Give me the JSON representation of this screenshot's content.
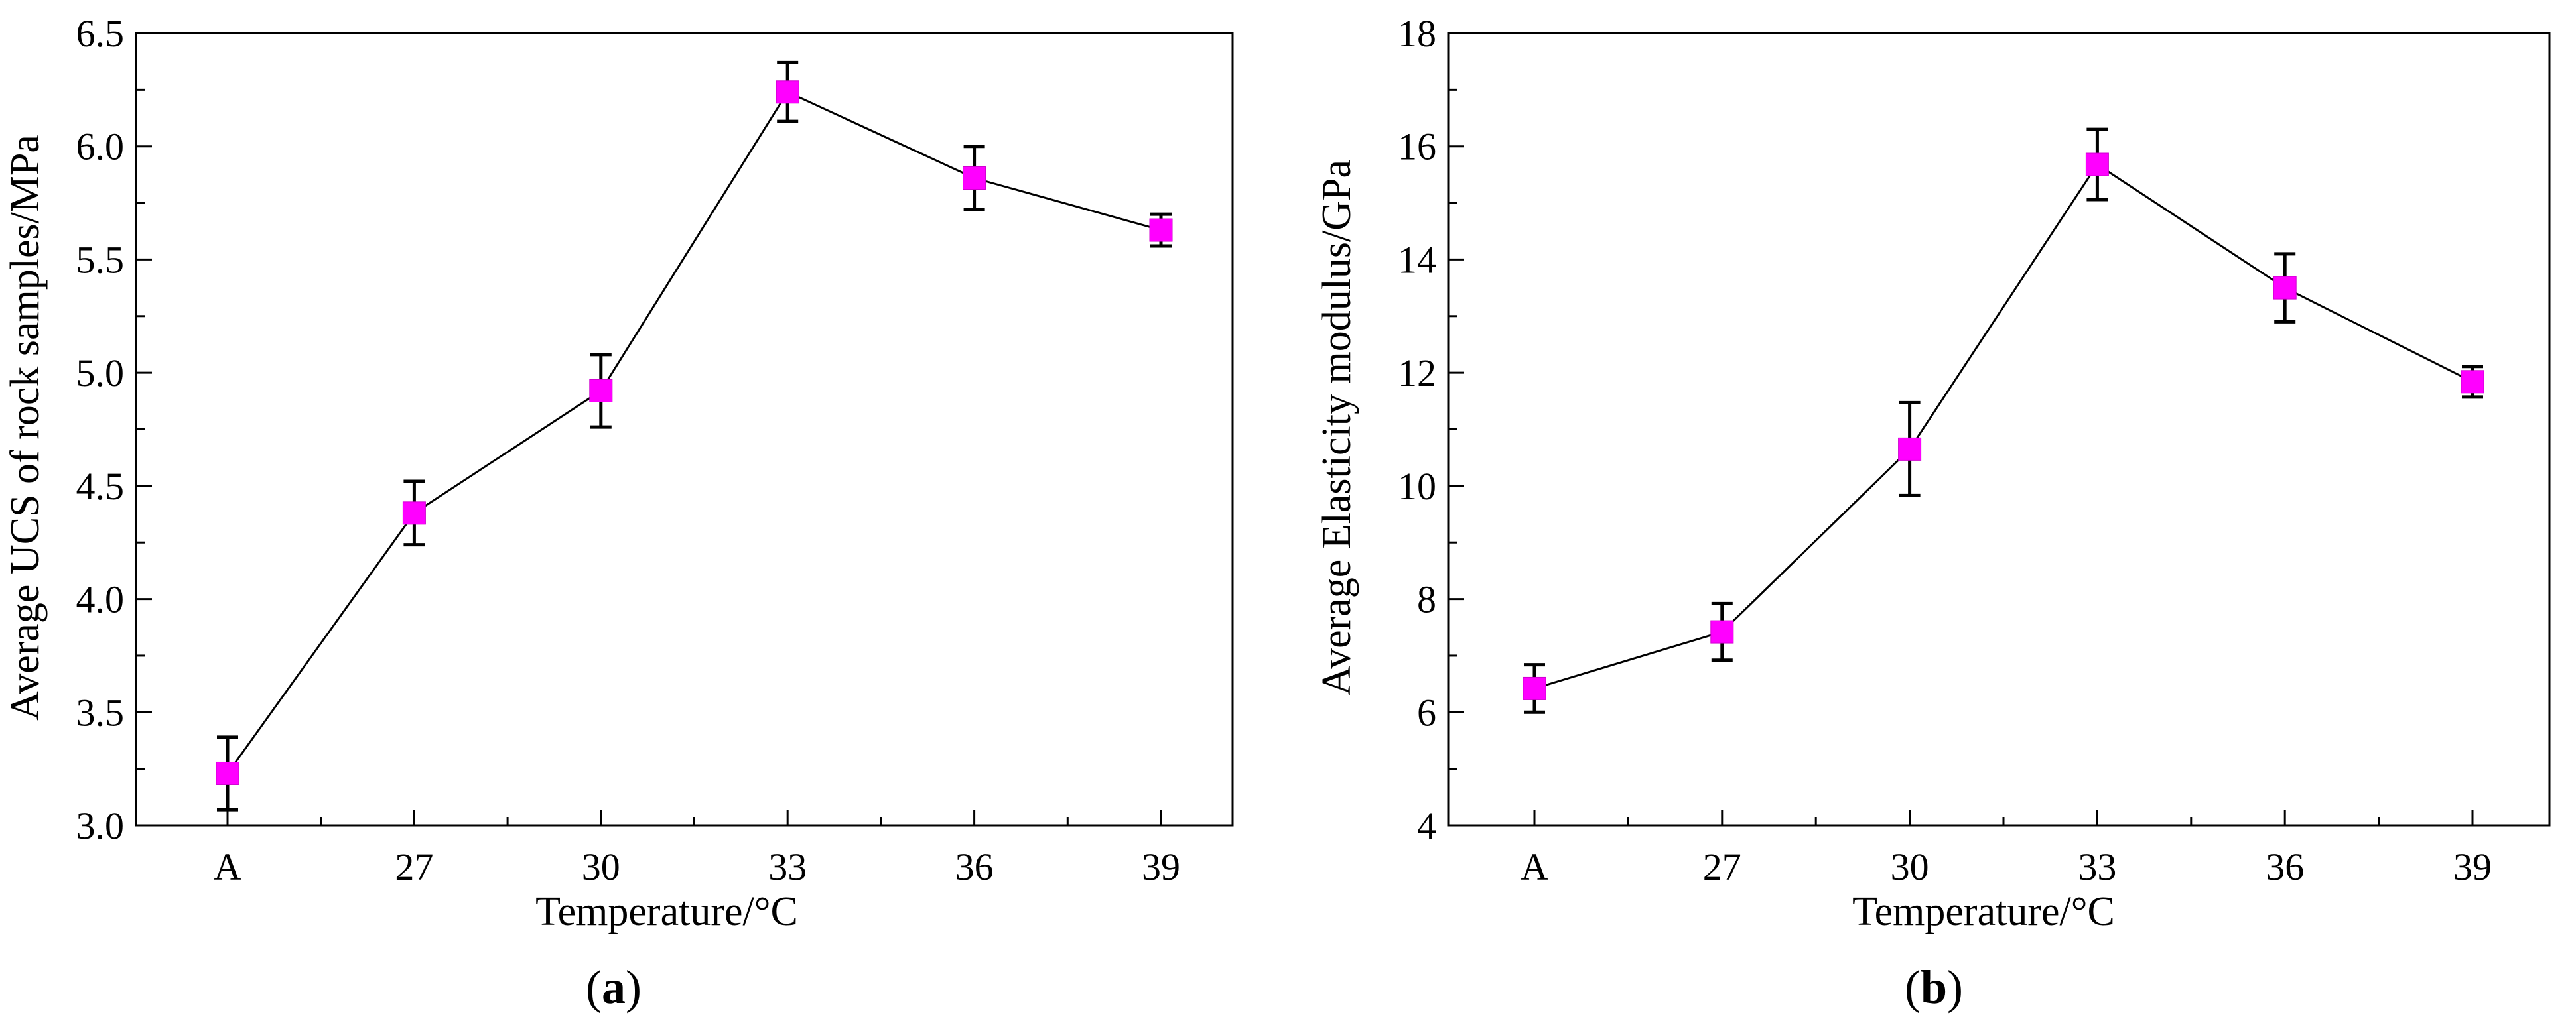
{
  "chart_data": [
    {
      "type": "line",
      "panel_label": "a",
      "categories": [
        "A",
        "27",
        "30",
        "33",
        "36",
        "39"
      ],
      "series": [
        {
          "name": "Average UCS",
          "values": [
            3.23,
            4.38,
            4.92,
            6.24,
            5.86,
            5.63
          ],
          "errors": [
            0.16,
            0.14,
            0.16,
            0.13,
            0.14,
            0.07
          ],
          "marker_color": "#ff00ff"
        }
      ],
      "title": "",
      "xlabel": "Temperature/°C",
      "ylabel": "Average UCS of rock samples/MPa",
      "ylim": [
        3.0,
        6.5
      ],
      "yticks": [
        3.0,
        3.5,
        4.0,
        4.5,
        5.0,
        5.5,
        6.0,
        6.5
      ],
      "ytick_labels": [
        "3.0",
        "3.5",
        "4.0",
        "4.5",
        "5.0",
        "5.5",
        "6.0",
        "6.5"
      ]
    },
    {
      "type": "line",
      "panel_label": "b",
      "categories": [
        "A",
        "27",
        "30",
        "33",
        "36",
        "39"
      ],
      "series": [
        {
          "name": "Average Elasticity modulus",
          "values": [
            6.42,
            7.42,
            10.65,
            15.68,
            13.5,
            11.84
          ],
          "errors": [
            0.42,
            0.5,
            0.82,
            0.62,
            0.6,
            0.27
          ],
          "marker_color": "#ff00ff"
        }
      ],
      "title": "",
      "xlabel": "Temperature/°C",
      "ylabel": "Average Elasticity modulus/GPa",
      "ylim": [
        4,
        18
      ],
      "yticks": [
        4,
        6,
        8,
        10,
        12,
        14,
        16,
        18
      ],
      "ytick_labels": [
        "4",
        "6",
        "8",
        "10",
        "12",
        "14",
        "16",
        "18"
      ]
    }
  ]
}
